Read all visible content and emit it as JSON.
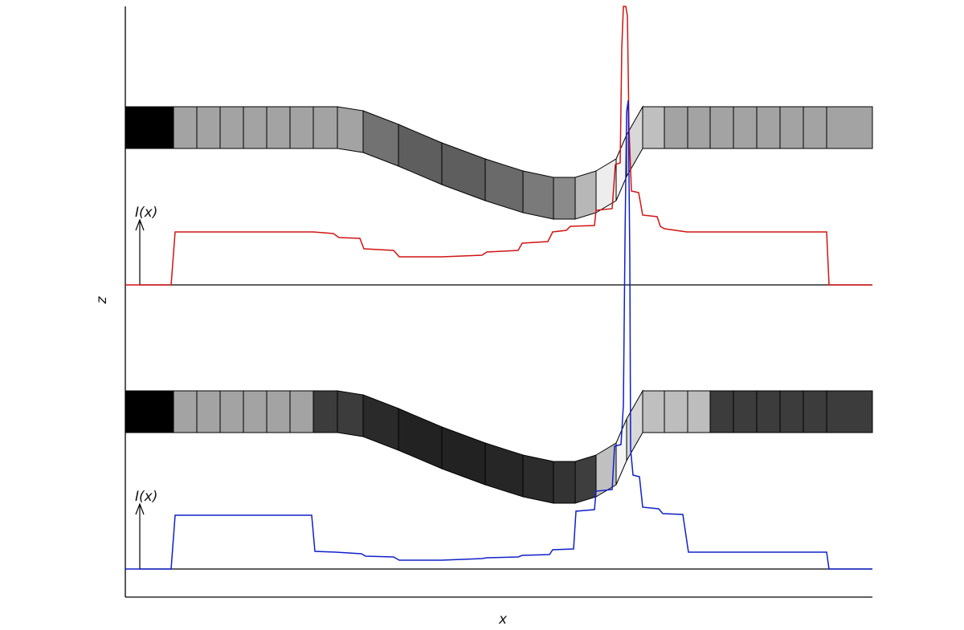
{
  "axes": {
    "x_label": "x",
    "z_label": "z"
  },
  "panels": [
    {
      "id": "top",
      "intensity_label": "I(x)",
      "trace_color": "#d11414",
      "cell_colors": [
        "#000000",
        "#a3a3a3",
        "#a3a3a3",
        "#a3a3a3",
        "#a3a3a3",
        "#a3a3a3",
        "#a3a3a3",
        "#a3a3a3",
        "#a3a3a3",
        "#727272",
        "#5e5e5e",
        "#5e5e5e",
        "#6a6a6a",
        "#7a7a7a",
        "#8a8a8a",
        "#b7b7b7",
        "#ededed",
        "#f7f7f7",
        "#d8d8d8",
        "#bfbfbf",
        "#a3a3a3",
        "#a3a3a3",
        "#a3a3a3",
        "#a3a3a3",
        "#a3a3a3",
        "#a3a3a3",
        "#a3a3a3",
        "#a3a3a3",
        "#000000"
      ]
    },
    {
      "id": "bottom",
      "intensity_label": "I(x)",
      "trace_color": "#1020c8",
      "cell_colors": [
        "#000000",
        "#a3a3a3",
        "#a3a3a3",
        "#a3a3a3",
        "#a3a3a3",
        "#a3a3a3",
        "#a3a3a3",
        "#3c3c3c",
        "#3c3c3c",
        "#2a2a2a",
        "#222222",
        "#222222",
        "#262626",
        "#2c2c2c",
        "#333333",
        "#3e3e3e",
        "#c0c0c0",
        "#f4f4f4",
        "#d8d8d8",
        "#bfbfbf",
        "#bdbdbd",
        "#bdbdbd",
        "#3c3c3c",
        "#3c3c3c",
        "#3c3c3c",
        "#3c3c3c",
        "#3c3c3c",
        "#3c3c3c",
        "#000000"
      ]
    }
  ]
}
